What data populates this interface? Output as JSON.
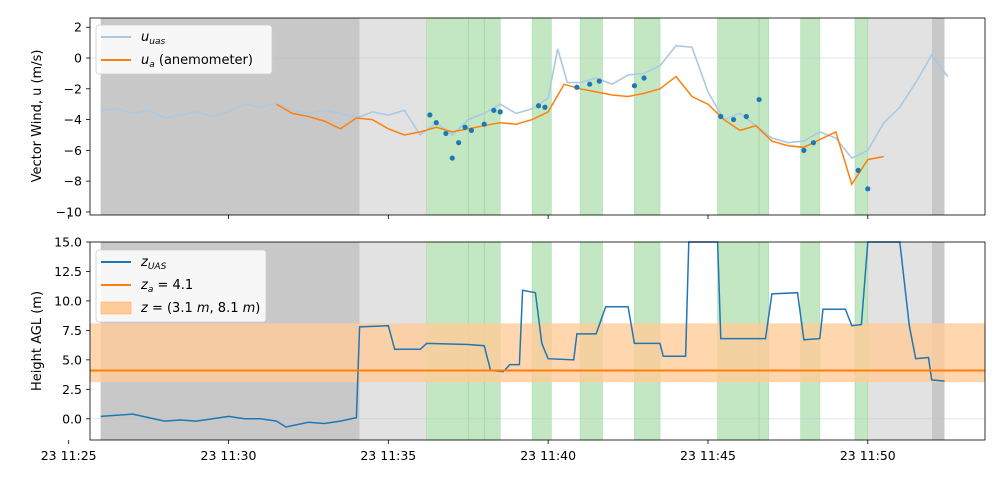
{
  "chart_data": [
    {
      "type": "line",
      "ylabel": "Vector Wind, u (m/s)",
      "xlim": [
        25.667,
        53.667
      ],
      "ylim": [
        -10.2,
        2.6
      ],
      "yticks": [
        2,
        0,
        -2,
        -4,
        -6,
        -8,
        -10
      ],
      "legend_position": "top-left",
      "legend": [
        "u_uas",
        "u_a  (anemometer)"
      ],
      "series": [
        {
          "name": "u_uas",
          "color": "#aac9e3",
          "points": [
            [
              26.0,
              -3.4
            ],
            [
              26.5,
              -3.3
            ],
            [
              27.0,
              -3.6
            ],
            [
              27.5,
              -3.4
            ],
            [
              28.0,
              -3.9
            ],
            [
              28.5,
              -3.7
            ],
            [
              29.0,
              -3.5
            ],
            [
              29.5,
              -3.8
            ],
            [
              30.0,
              -3.5
            ],
            [
              30.5,
              -3.0
            ],
            [
              31.0,
              -3.2
            ],
            [
              31.5,
              -2.9
            ],
            [
              32.0,
              -3.4
            ],
            [
              32.5,
              -3.6
            ],
            [
              33.0,
              -3.4
            ],
            [
              33.5,
              -3.6
            ],
            [
              34.0,
              -3.9
            ],
            [
              34.5,
              -3.5
            ],
            [
              35.0,
              -3.7
            ],
            [
              35.5,
              -3.4
            ],
            [
              36.0,
              -5.0
            ],
            [
              36.5,
              -4.2
            ],
            [
              37.0,
              -5.0
            ],
            [
              37.5,
              -4.0
            ],
            [
              38.0,
              -3.6
            ],
            [
              38.5,
              -3.0
            ],
            [
              39.0,
              -3.6
            ],
            [
              39.5,
              -3.3
            ],
            [
              40.0,
              -2.6
            ],
            [
              40.3,
              0.6
            ],
            [
              40.6,
              -1.6
            ],
            [
              41.0,
              -1.6
            ],
            [
              41.5,
              -1.3
            ],
            [
              42.0,
              -1.7
            ],
            [
              42.5,
              -1.1
            ],
            [
              43.0,
              -1.0
            ],
            [
              43.5,
              -0.5
            ],
            [
              44.0,
              0.8
            ],
            [
              44.5,
              0.7
            ],
            [
              45.0,
              -2.2
            ],
            [
              45.5,
              -4.0
            ],
            [
              46.0,
              -3.6
            ],
            [
              46.5,
              -4.4
            ],
            [
              47.0,
              -5.2
            ],
            [
              47.5,
              -5.5
            ],
            [
              48.0,
              -5.4
            ],
            [
              48.5,
              -4.8
            ],
            [
              49.0,
              -5.2
            ],
            [
              49.5,
              -6.5
            ],
            [
              50.0,
              -6.0
            ],
            [
              50.5,
              -4.2
            ],
            [
              51.0,
              -3.2
            ],
            [
              51.5,
              -1.6
            ],
            [
              52.0,
              0.2
            ],
            [
              52.5,
              -1.2
            ]
          ]
        },
        {
          "name": "u_a  (anemometer)",
          "color": "#ff7f0e",
          "points": [
            [
              31.5,
              -3.0
            ],
            [
              32.0,
              -3.6
            ],
            [
              32.5,
              -3.8
            ],
            [
              33.0,
              -4.1
            ],
            [
              33.5,
              -4.6
            ],
            [
              34.0,
              -3.9
            ],
            [
              34.5,
              -4.0
            ],
            [
              35.0,
              -4.6
            ],
            [
              35.5,
              -5.0
            ],
            [
              36.0,
              -4.8
            ],
            [
              36.5,
              -4.5
            ],
            [
              37.0,
              -4.8
            ],
            [
              37.5,
              -4.6
            ],
            [
              38.0,
              -4.4
            ],
            [
              38.5,
              -4.2
            ],
            [
              39.0,
              -4.3
            ],
            [
              39.5,
              -4.0
            ],
            [
              40.0,
              -3.5
            ],
            [
              40.5,
              -1.7
            ],
            [
              41.0,
              -2.0
            ],
            [
              41.5,
              -2.2
            ],
            [
              42.0,
              -2.4
            ],
            [
              42.5,
              -2.5
            ],
            [
              43.0,
              -2.3
            ],
            [
              43.5,
              -2.0
            ],
            [
              44.0,
              -1.2
            ],
            [
              44.5,
              -2.5
            ],
            [
              45.0,
              -3.0
            ],
            [
              45.5,
              -4.0
            ],
            [
              46.0,
              -4.7
            ],
            [
              46.5,
              -4.4
            ],
            [
              47.0,
              -5.4
            ],
            [
              47.5,
              -5.7
            ],
            [
              48.0,
              -5.8
            ],
            [
              48.5,
              -5.3
            ],
            [
              49.0,
              -4.8
            ],
            [
              49.5,
              -8.2
            ],
            [
              50.0,
              -6.6
            ],
            [
              50.5,
              -6.4
            ]
          ]
        },
        {
          "name": "u_uas in-window samples",
          "color": "#1f77b4",
          "points": [
            [
              36.3,
              -3.7
            ],
            [
              36.5,
              -4.2
            ],
            [
              36.8,
              -4.9
            ],
            [
              37.0,
              -6.5
            ],
            [
              37.2,
              -5.5
            ],
            [
              37.4,
              -4.5
            ],
            [
              37.6,
              -4.7
            ],
            [
              38.0,
              -4.3
            ],
            [
              38.3,
              -3.4
            ],
            [
              38.5,
              -3.5
            ],
            [
              39.7,
              -3.1
            ],
            [
              39.9,
              -3.2
            ],
            [
              40.9,
              -1.9
            ],
            [
              41.3,
              -1.7
            ],
            [
              41.6,
              -1.5
            ],
            [
              42.7,
              -1.8
            ],
            [
              43.0,
              -1.3
            ],
            [
              45.4,
              -3.8
            ],
            [
              45.8,
              -4.0
            ],
            [
              46.2,
              -3.8
            ],
            [
              46.6,
              -2.7
            ],
            [
              48.0,
              -6.0
            ],
            [
              48.3,
              -5.5
            ],
            [
              49.7,
              -7.3
            ],
            [
              50.0,
              -8.5
            ]
          ]
        }
      ]
    },
    {
      "type": "line",
      "ylabel": "Height AGL (m)",
      "xlim": [
        25.667,
        53.667
      ],
      "ylim": [
        -1.8,
        15.0
      ],
      "yticks": [
        15.0,
        12.5,
        10.0,
        7.5,
        5.0,
        2.5,
        0.0
      ],
      "xticks": [
        25,
        30,
        35,
        40,
        45,
        50
      ],
      "xticklabels": [
        "23 11:25",
        "23 11:30",
        "23 11:35",
        "23 11:40",
        "23 11:45",
        "23 11:50"
      ],
      "legend_position": "top-left",
      "legend": [
        "z_UAS",
        "z_a = 4.1",
        "z = (3.1 m, 8.1 m)"
      ],
      "z_a": 4.1,
      "band": [
        3.1,
        8.1
      ],
      "series": [
        {
          "name": "z_UAS",
          "color": "#1f77b4",
          "points": [
            [
              26.0,
              0.2
            ],
            [
              26.5,
              0.3
            ],
            [
              27.0,
              0.4
            ],
            [
              27.5,
              0.1
            ],
            [
              28.0,
              -0.2
            ],
            [
              28.5,
              -0.1
            ],
            [
              29.0,
              -0.2
            ],
            [
              29.5,
              0.0
            ],
            [
              30.0,
              0.2
            ],
            [
              30.5,
              0.0
            ],
            [
              31.0,
              0.0
            ],
            [
              31.5,
              -0.2
            ],
            [
              31.8,
              -0.7
            ],
            [
              32.5,
              -0.3
            ],
            [
              33.0,
              -0.4
            ],
            [
              33.5,
              -0.2
            ],
            [
              34.0,
              0.1
            ],
            [
              34.1,
              7.8
            ],
            [
              35.0,
              7.9
            ],
            [
              35.2,
              5.9
            ],
            [
              36.0,
              5.9
            ],
            [
              36.2,
              6.4
            ],
            [
              37.5,
              6.3
            ],
            [
              38.0,
              6.2
            ],
            [
              38.2,
              4.1
            ],
            [
              38.6,
              4.0
            ],
            [
              38.8,
              4.6
            ],
            [
              39.1,
              4.6
            ],
            [
              39.2,
              10.9
            ],
            [
              39.6,
              10.7
            ],
            [
              39.8,
              6.4
            ],
            [
              40.0,
              5.1
            ],
            [
              40.8,
              5.0
            ],
            [
              40.9,
              7.2
            ],
            [
              41.5,
              7.2
            ],
            [
              41.8,
              9.5
            ],
            [
              42.5,
              9.5
            ],
            [
              42.7,
              6.4
            ],
            [
              43.5,
              6.4
            ],
            [
              43.6,
              5.3
            ],
            [
              44.3,
              5.3
            ],
            [
              44.4,
              15.0
            ],
            [
              45.3,
              15.0
            ],
            [
              45.4,
              6.8
            ],
            [
              46.8,
              6.8
            ],
            [
              47.0,
              10.6
            ],
            [
              47.8,
              10.7
            ],
            [
              48.0,
              6.7
            ],
            [
              48.5,
              6.8
            ],
            [
              48.6,
              9.3
            ],
            [
              49.3,
              9.3
            ],
            [
              49.5,
              7.9
            ],
            [
              49.8,
              8.0
            ],
            [
              50.0,
              15.0
            ],
            [
              51.0,
              15.0
            ],
            [
              51.3,
              7.9
            ],
            [
              51.5,
              5.1
            ],
            [
              51.9,
              5.2
            ],
            [
              52.0,
              3.3
            ],
            [
              52.4,
              3.2
            ]
          ]
        }
      ]
    }
  ],
  "shading": {
    "gray_dark": [
      [
        26.0,
        34.1
      ],
      [
        52.0,
        52.4
      ]
    ],
    "gray_light": [
      [
        34.1,
        36.2
      ],
      [
        50.0,
        52.0
      ]
    ],
    "green": [
      [
        36.2,
        37.5
      ],
      [
        37.5,
        38.0
      ],
      [
        38.0,
        38.5
      ],
      [
        39.5,
        40.1
      ],
      [
        41.0,
        41.7
      ],
      [
        42.7,
        43.5
      ],
      [
        45.3,
        46.6
      ],
      [
        46.6,
        46.9
      ],
      [
        47.9,
        48.5
      ],
      [
        49.6,
        50.0
      ]
    ]
  },
  "colors": {
    "u_uas": "#aac9e3",
    "u_a": "#ff7f0e",
    "z_uas": "#1f77b4",
    "band": "#ffcc99",
    "green": "#aedfae",
    "gray_dark": "#c8c8c8",
    "gray_light": "#e2e2e2"
  }
}
